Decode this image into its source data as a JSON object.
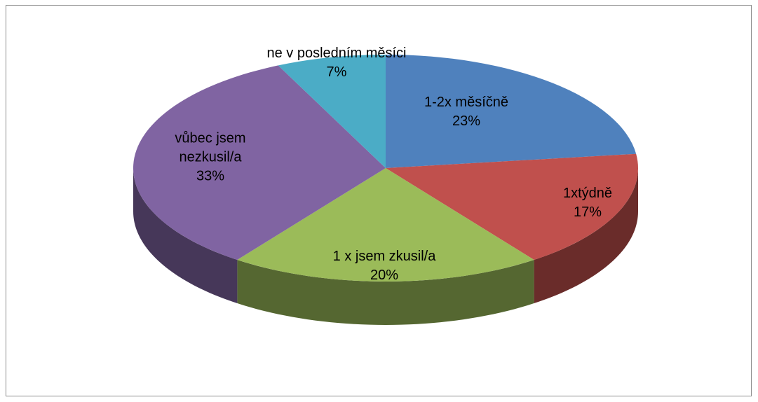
{
  "chart_data": {
    "type": "pie",
    "categories": [
      "1-2x měsíčně",
      "1xtýdně",
      "1 x jsem zkusil/a",
      "vůbec jsem nezkusil/a",
      "ne v posledním měsíci"
    ],
    "values": [
      23,
      17,
      20,
      33,
      7
    ],
    "value_labels": [
      "23%",
      "17%",
      "20%",
      "33%",
      "7%"
    ],
    "colors": [
      "#4f81bd",
      "#c0504d",
      "#9bbb59",
      "#8064a2",
      "#4bacc6"
    ]
  }
}
